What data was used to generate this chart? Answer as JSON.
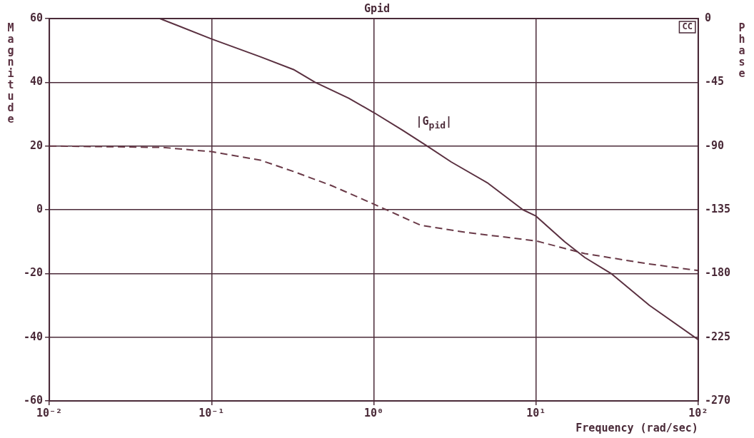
{
  "chart_data": {
    "type": "line",
    "title": "Gpid",
    "xlabel": "Frequency (rad/sec)",
    "ylabel": "Magnitude",
    "y2label": "Phase",
    "series": [
      {
        "color": "#5a3040",
        "line_style": "solid",
        "x": [
          0.048,
          0.1,
          0.2,
          0.32,
          0.435,
          0.7,
          1,
          1.5,
          2.13,
          3,
          5,
          8.3,
          10,
          15,
          20,
          29,
          50,
          100
        ],
        "values": [
          60,
          53.6,
          48,
          44,
          40,
          35,
          30.5,
          25,
          20,
          15,
          8.5,
          0,
          -2,
          -10,
          -15,
          -20,
          -30,
          -40.8
        ]
      },
      {
        "color": "#6a3a48",
        "line_style": "dashed",
        "axis": "y2",
        "x": [
          0.01,
          0.05,
          0.1,
          0.2,
          0.32,
          0.55,
          1,
          1.95,
          3.7,
          10,
          20,
          48,
          100
        ],
        "values": [
          -90,
          -91,
          -94,
          -100,
          -108,
          -118,
          -131,
          -146,
          -151,
          -157,
          -166,
          -173,
          -178
        ]
      }
    ],
    "xlim": [
      0.01,
      100
    ],
    "xticks": [
      {
        "value": 0.01,
        "label": "10⁻²"
      },
      {
        "value": 0.1,
        "label": "10⁻¹"
      },
      {
        "value": 1,
        "label": "10⁰"
      },
      {
        "value": 10,
        "label": "10¹"
      },
      {
        "value": 100,
        "label": "10²"
      }
    ],
    "ylim": [
      -60,
      60
    ],
    "yticks": [
      -60,
      -40,
      -20,
      0,
      20,
      40,
      60
    ],
    "y2lim": [
      -270,
      0
    ],
    "y2ticks": [
      -270,
      -225,
      -180,
      -135,
      -90,
      -45,
      0
    ],
    "log": "x",
    "grid": true,
    "legend": false,
    "marker": "none",
    "annotations": [
      "|G$_{pid}$|",
      "CC"
    ]
  }
}
